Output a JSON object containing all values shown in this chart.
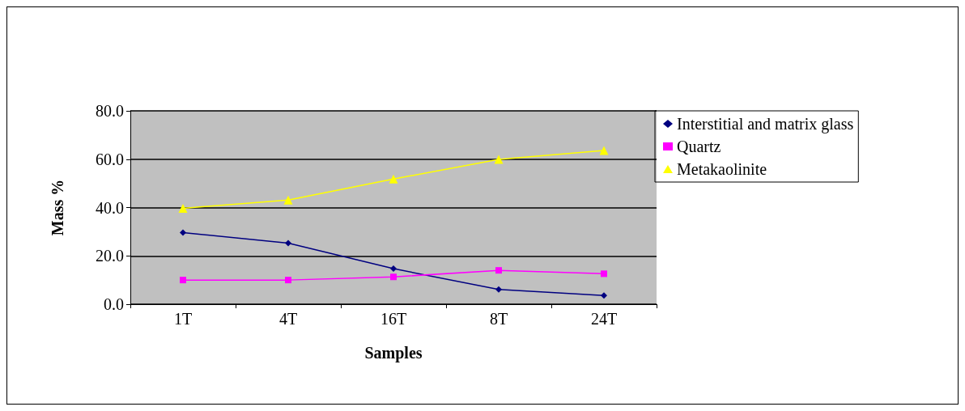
{
  "chart_data": {
    "type": "line",
    "xlabel": "Samples",
    "ylabel": "Mass %",
    "categories": [
      "1T",
      "4T",
      "16T",
      "8T",
      "24T"
    ],
    "series": [
      {
        "name": "Interstitial and matrix glass",
        "color": "#000080",
        "marker": "diamond",
        "values": [
          29.6,
          25.3,
          14.7,
          6.1,
          3.6
        ]
      },
      {
        "name": "Quartz",
        "color": "#ff00ff",
        "marker": "square",
        "values": [
          10.0,
          10.0,
          11.3,
          14.0,
          12.6
        ]
      },
      {
        "name": "Metakaolinite",
        "color": "#ffff00",
        "marker": "triangle",
        "values": [
          39.7,
          43.1,
          51.8,
          59.9,
          63.6
        ]
      }
    ],
    "ylim": [
      0,
      80
    ],
    "yticks": [
      {
        "value": 0,
        "label": "0.0"
      },
      {
        "value": 20,
        "label": "20.0"
      },
      {
        "value": 40,
        "label": "40.0"
      },
      {
        "value": 60,
        "label": "60.0"
      },
      {
        "value": 80,
        "label": "80.0"
      }
    ],
    "grid": "y",
    "legend": "right"
  }
}
